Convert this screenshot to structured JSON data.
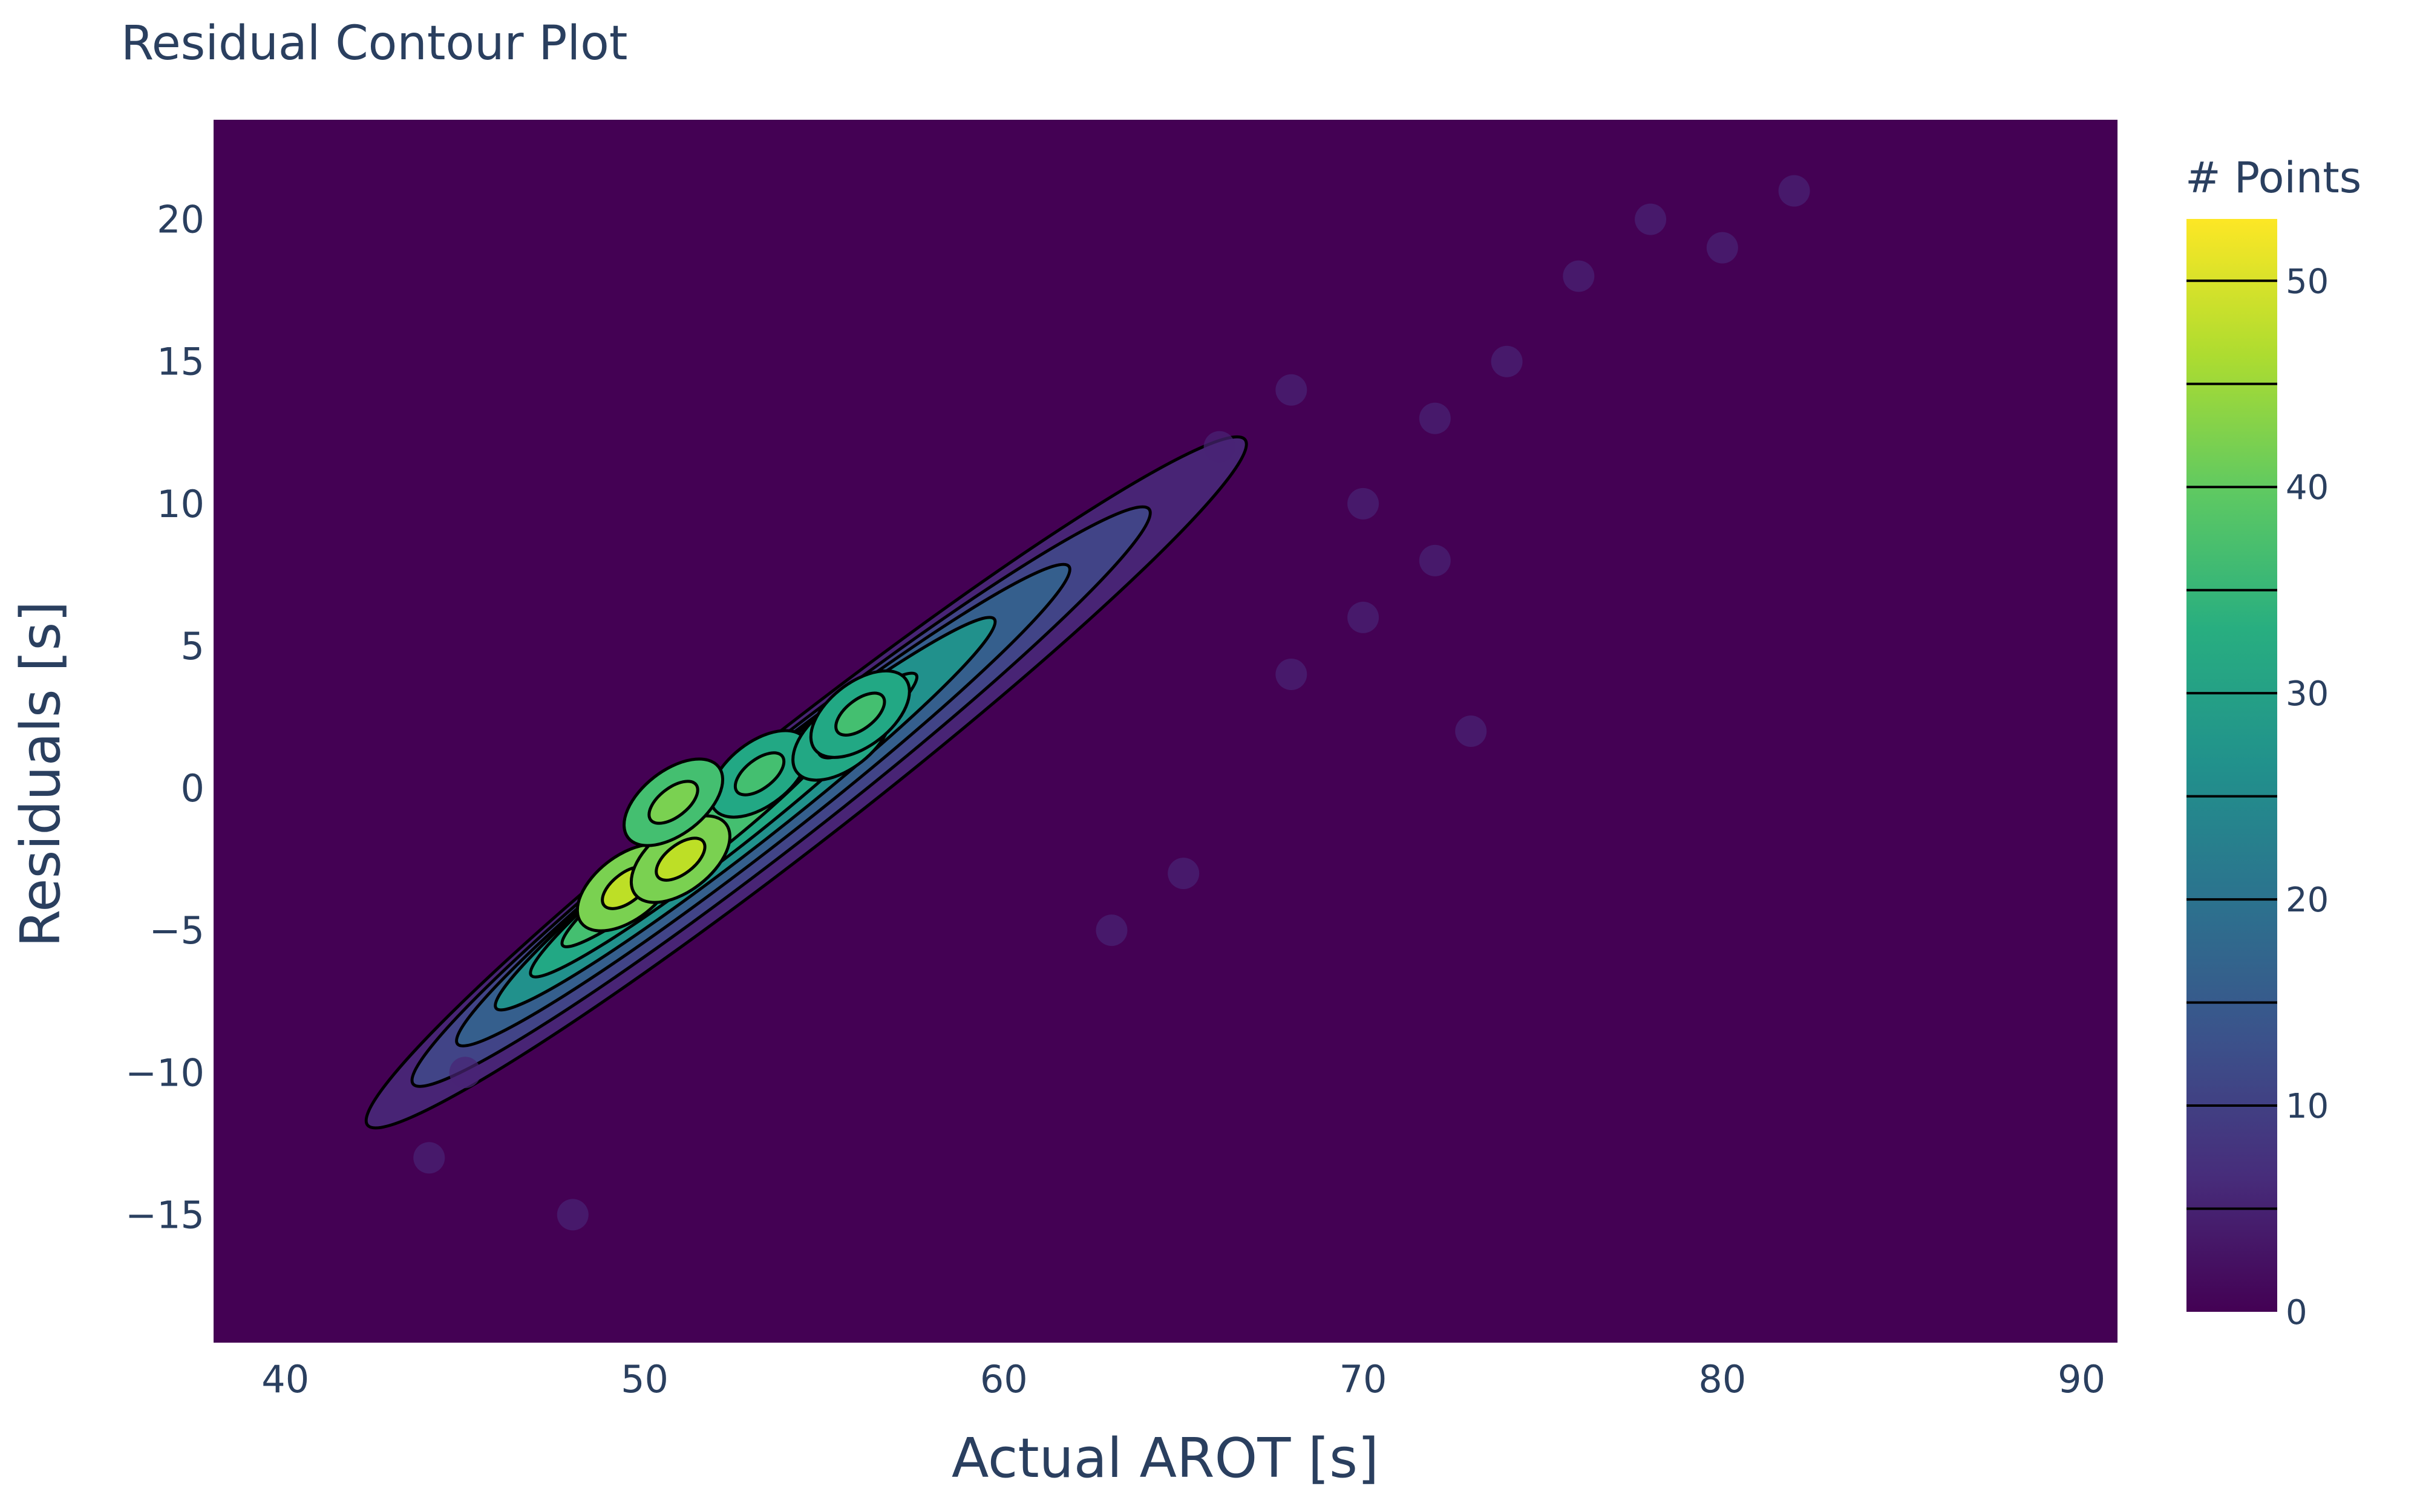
{
  "chart_data": {
    "type": "heatmap",
    "title": "Residual Contour Plot",
    "xlabel": "Actual AROT [s]",
    "ylabel": "Residuals [s]",
    "xlim": [
      38,
      91
    ],
    "ylim": [
      -19.5,
      23.5
    ],
    "x_ticks": [
      40,
      50,
      60,
      70,
      80,
      90
    ],
    "y_ticks": [
      -15,
      -10,
      -5,
      0,
      5,
      10,
      15,
      20
    ],
    "colorbar": {
      "title": "# Points",
      "range": [
        0,
        53
      ],
      "ticks": [
        0,
        10,
        20,
        30,
        40,
        50
      ],
      "contour_levels": [
        5,
        10,
        15,
        20,
        25,
        30,
        35,
        40,
        45,
        50
      ],
      "colorscale": "Viridis"
    },
    "density_peaks": [
      {
        "x": 49.5,
        "y": -3.5,
        "count": 46
      },
      {
        "x": 51.0,
        "y": -2.5,
        "count": 50
      },
      {
        "x": 53.2,
        "y": 0.5,
        "count": 39
      },
      {
        "x": 55.5,
        "y": 1.8,
        "count": 37
      },
      {
        "x": 56.0,
        "y": 2.6,
        "count": 35
      },
      {
        "x": 50.8,
        "y": -0.5,
        "count": 41
      }
    ]
  },
  "colors": {
    "background": "#440154",
    "text": "#2a3f5f",
    "contour_line": "#000000"
  }
}
